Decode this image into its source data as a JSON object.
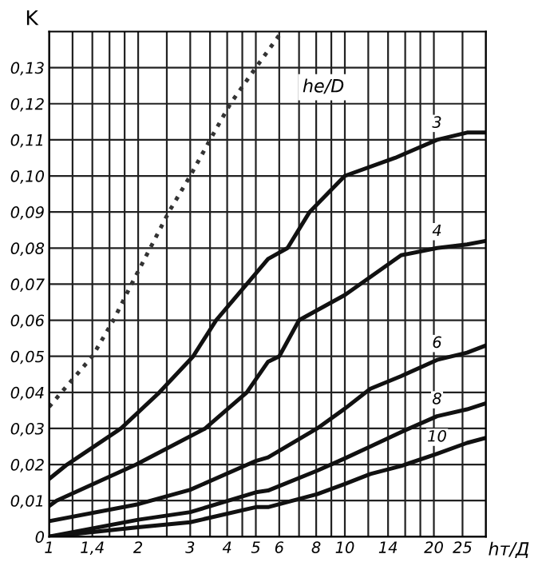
{
  "chart_data": {
    "type": "line",
    "ylabel": "K",
    "xlabel": "hт/Д",
    "log": "x",
    "grid": true,
    "legend": false,
    "marker": "none",
    "annotations": [
      "he/D"
    ],
    "xlim": [
      1,
      30
    ],
    "ylim": [
      0,
      0.14
    ],
    "xticks": [
      1,
      {
        "value": 1.2,
        "label": null
      },
      {
        "value": 1.4,
        "label": "1,4"
      },
      {
        "value": 1.6,
        "label": null
      },
      {
        "value": 1.8,
        "label": null
      },
      2,
      {
        "value": 2.5,
        "label": null
      },
      3,
      {
        "value": 3.5,
        "label": null
      },
      4,
      {
        "value": 4.5,
        "label": null
      },
      5,
      6,
      {
        "value": 7,
        "label": null
      },
      8,
      {
        "value": 9,
        "label": null
      },
      10,
      {
        "value": 12,
        "label": null
      },
      14,
      {
        "value": 16,
        "label": null
      },
      {
        "value": 18,
        "label": null
      },
      20,
      25,
      {
        "value": 30,
        "label": null
      }
    ],
    "yticks": [
      0,
      {
        "value": 0.01,
        "label": "0,01"
      },
      {
        "value": 0.02,
        "label": "0,02"
      },
      {
        "value": 0.03,
        "label": "0,03"
      },
      {
        "value": 0.04,
        "label": "0,04"
      },
      {
        "value": 0.05,
        "label": "0,05"
      },
      {
        "value": 0.06,
        "label": "0,06"
      },
      {
        "value": 0.07,
        "label": "0,07"
      },
      {
        "value": 0.08,
        "label": "0,08"
      },
      {
        "value": 0.09,
        "label": "0,09"
      },
      {
        "value": 0.1,
        "label": "0,10"
      },
      {
        "value": 0.11,
        "label": "0,11"
      },
      {
        "value": 0.12,
        "label": "0,12"
      },
      {
        "value": 0.13,
        "label": "0,13"
      }
    ],
    "series": [
      {
        "color": "#333333",
        "line_style": "dotted",
        "x": [
          1,
          1.4,
          1.65,
          1.9,
          2.54,
          3.0,
          3.5,
          4.1,
          5.0,
          6.0
        ],
        "values": [
          0.036,
          0.05,
          0.06,
          0.07,
          0.09,
          0.1,
          0.11,
          0.12,
          0.13,
          0.139
        ]
      },
      {
        "name": "3",
        "color": "#111111",
        "x": [
          1,
          1.15,
          1.75,
          2.36,
          3.07,
          3.67,
          4.66,
          5.5,
          6.4,
          7.6,
          10,
          14.8,
          20.5,
          25.9,
          30
        ],
        "values": [
          0.016,
          0.02,
          0.03,
          0.04,
          0.05,
          0.06,
          0.07,
          0.077,
          0.08,
          0.09,
          0.1,
          0.105,
          0.11,
          0.112,
          0.112
        ]
      },
      {
        "name": "4",
        "color": "#111111",
        "x": [
          1,
          1.06,
          1.97,
          3.37,
          4.66,
          5.5,
          6.0,
          7.0,
          10,
          15.5,
          20.5,
          25.9,
          30
        ],
        "values": [
          0.0085,
          0.01,
          0.02,
          0.03,
          0.04,
          0.0485,
          0.05,
          0.06,
          0.067,
          0.078,
          0.08,
          0.081,
          0.082
        ]
      },
      {
        "name": "6",
        "color": "#111111",
        "x": [
          1,
          2,
          3,
          5,
          5.5,
          8.06,
          10,
          12.2,
          15.5,
          20.5,
          25.9,
          30
        ],
        "values": [
          0.0043,
          0.009,
          0.013,
          0.021,
          0.022,
          0.03,
          0.0355,
          0.041,
          0.0445,
          0.049,
          0.051,
          0.053
        ]
      },
      {
        "name": "8",
        "color": "#111111",
        "x": [
          1,
          2,
          3,
          5,
          5.5,
          8.06,
          10,
          12.2,
          15.5,
          20.5,
          25.9,
          30
        ],
        "values": [
          0,
          0.0047,
          0.0068,
          0.0123,
          0.0128,
          0.0183,
          0.0217,
          0.025,
          0.029,
          0.0334,
          0.0353,
          0.037
        ]
      },
      {
        "name": "10",
        "color": "#111111",
        "x": [
          1,
          2,
          3,
          5,
          5.5,
          8.06,
          10,
          12.2,
          15.5,
          20.5,
          25.9,
          30
        ],
        "values": [
          0,
          0.0026,
          0.004,
          0.0082,
          0.0082,
          0.0118,
          0.0146,
          0.0174,
          0.0196,
          0.023,
          0.026,
          0.0274
        ]
      }
    ]
  }
}
